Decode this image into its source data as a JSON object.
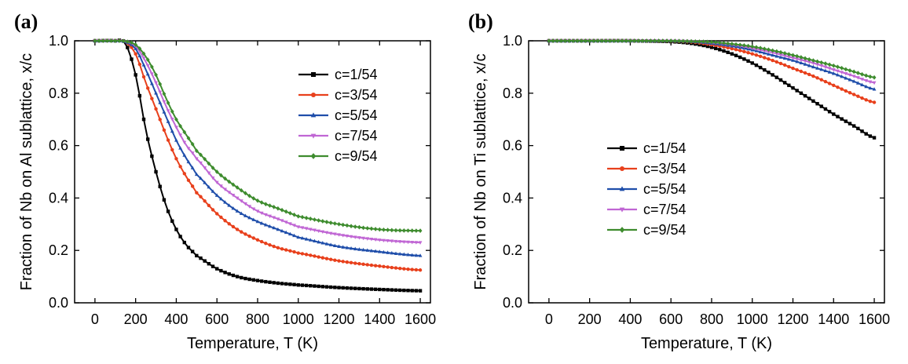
{
  "chart_data": [
    {
      "type": "line",
      "panel_label": "(a)",
      "xlabel": "Temperature, T (K)",
      "ylabel": "Fraction of Nb on Al sublattice, x/c",
      "xlim": [
        -100,
        1650
      ],
      "ylim": [
        0.0,
        1.0
      ],
      "xticks": [
        "0",
        "200",
        "400",
        "600",
        "800",
        "1000",
        "1200",
        "1400",
        "1600"
      ],
      "yticks": [
        "0.0",
        "0.2",
        "0.4",
        "0.6",
        "0.8",
        "1.0"
      ],
      "legend_position": "upper-right",
      "x": [
        0,
        100,
        150,
        200,
        250,
        300,
        350,
        400,
        450,
        500,
        600,
        700,
        800,
        900,
        1000,
        1200,
        1400,
        1600
      ],
      "series": [
        {
          "name": "c=1/54",
          "color": "#000000",
          "marker": "square",
          "values": [
            1.0,
            1.0,
            0.99,
            0.87,
            0.66,
            0.5,
            0.37,
            0.28,
            0.22,
            0.18,
            0.13,
            0.1,
            0.085,
            0.075,
            0.068,
            0.058,
            0.051,
            0.046
          ]
        },
        {
          "name": "c=3/54",
          "color": "#e8401c",
          "marker": "circle",
          "values": [
            1.0,
            1.0,
            0.995,
            0.95,
            0.84,
            0.74,
            0.64,
            0.55,
            0.48,
            0.42,
            0.34,
            0.28,
            0.24,
            0.21,
            0.19,
            0.16,
            0.14,
            0.125
          ]
        },
        {
          "name": "c=5/54",
          "color": "#1f4eaa",
          "marker": "triangle-up",
          "values": [
            1.0,
            1.0,
            0.995,
            0.97,
            0.89,
            0.8,
            0.71,
            0.62,
            0.55,
            0.49,
            0.41,
            0.35,
            0.31,
            0.28,
            0.25,
            0.215,
            0.195,
            0.18
          ]
        },
        {
          "name": "c=7/54",
          "color": "#c066d4",
          "marker": "triangle-down",
          "values": [
            1.0,
            1.0,
            0.997,
            0.98,
            0.92,
            0.84,
            0.75,
            0.67,
            0.6,
            0.55,
            0.46,
            0.4,
            0.35,
            0.32,
            0.29,
            0.26,
            0.24,
            0.23
          ]
        },
        {
          "name": "c=9/54",
          "color": "#3e8c2e",
          "marker": "diamond",
          "values": [
            1.0,
            1.0,
            0.998,
            0.985,
            0.94,
            0.87,
            0.78,
            0.7,
            0.64,
            0.58,
            0.5,
            0.44,
            0.39,
            0.36,
            0.33,
            0.3,
            0.28,
            0.275
          ]
        }
      ]
    },
    {
      "type": "line",
      "panel_label": "(b)",
      "xlabel": "Temperature, T (K)",
      "ylabel": "Fraction of Nb on Ti sublattice, x/c",
      "xlim": [
        -100,
        1650
      ],
      "ylim": [
        0.0,
        1.0
      ],
      "xticks": [
        "0",
        "200",
        "400",
        "600",
        "800",
        "1000",
        "1200",
        "1400",
        "1600"
      ],
      "yticks": [
        "0.0",
        "0.2",
        "0.4",
        "0.6",
        "0.8",
        "1.0"
      ],
      "legend_position": "lower-left",
      "x": [
        0,
        200,
        400,
        600,
        700,
        800,
        900,
        1000,
        1100,
        1200,
        1300,
        1400,
        1500,
        1600
      ],
      "series": [
        {
          "name": "c=1/54",
          "color": "#000000",
          "marker": "square",
          "values": [
            1.0,
            1.0,
            1.0,
            0.997,
            0.99,
            0.975,
            0.95,
            0.915,
            0.87,
            0.82,
            0.77,
            0.72,
            0.675,
            0.63
          ]
        },
        {
          "name": "c=3/54",
          "color": "#e8401c",
          "marker": "circle",
          "values": [
            1.0,
            1.0,
            1.0,
            0.999,
            0.995,
            0.985,
            0.97,
            0.95,
            0.925,
            0.895,
            0.865,
            0.83,
            0.795,
            0.765
          ]
        },
        {
          "name": "c=5/54",
          "color": "#1f4eaa",
          "marker": "triangle-up",
          "values": [
            1.0,
            1.0,
            1.0,
            1.0,
            0.997,
            0.99,
            0.98,
            0.965,
            0.945,
            0.925,
            0.9,
            0.875,
            0.845,
            0.815
          ]
        },
        {
          "name": "c=7/54",
          "color": "#c066d4",
          "marker": "triangle-down",
          "values": [
            1.0,
            1.0,
            1.0,
            1.0,
            0.998,
            0.993,
            0.985,
            0.972,
            0.955,
            0.935,
            0.915,
            0.89,
            0.865,
            0.84
          ]
        },
        {
          "name": "c=9/54",
          "color": "#3e8c2e",
          "marker": "diamond",
          "values": [
            1.0,
            1.0,
            1.0,
            1.0,
            0.998,
            0.995,
            0.988,
            0.978,
            0.963,
            0.945,
            0.925,
            0.905,
            0.882,
            0.86
          ]
        }
      ]
    }
  ]
}
